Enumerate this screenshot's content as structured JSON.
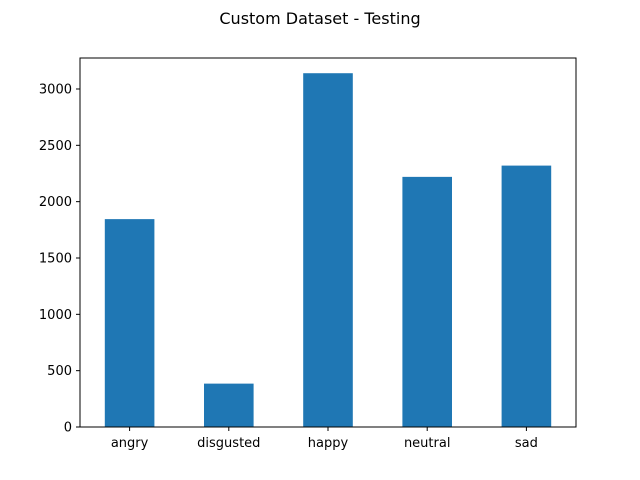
{
  "chart_data": {
    "type": "bar",
    "title": "Custom Dataset - Testing",
    "xlabel": "",
    "ylabel": "",
    "categories": [
      "angry",
      "disgusted",
      "happy",
      "neutral",
      "sad"
    ],
    "values": [
      1845,
      385,
      3140,
      2220,
      2320
    ],
    "ylim": [
      0,
      3275
    ],
    "yticks": [
      0,
      500,
      1000,
      1500,
      2000,
      2500,
      3000
    ],
    "grid": false,
    "legend": "none",
    "bar_color": "#1f77b4"
  }
}
